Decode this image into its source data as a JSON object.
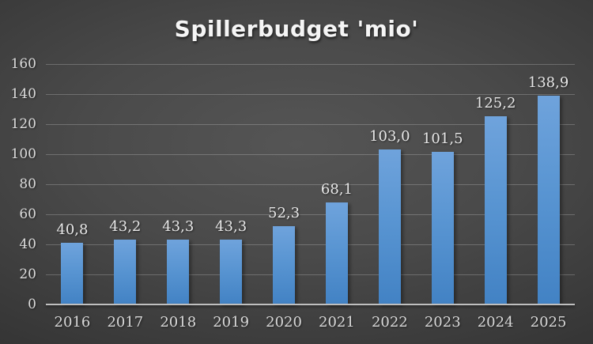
{
  "chart_data": {
    "type": "bar",
    "title": "Spillerbudget 'mio'",
    "categories": [
      "2016",
      "2017",
      "2018",
      "2019",
      "2020",
      "2021",
      "2022",
      "2023",
      "2024",
      "2025"
    ],
    "values": [
      40.8,
      43.2,
      43.3,
      43.3,
      52.3,
      68.1,
      103.0,
      101.5,
      125.2,
      138.9
    ],
    "value_labels": [
      "40,8",
      "43,2",
      "43,3",
      "43,3",
      "52,3",
      "68,1",
      "103,0",
      "101,5",
      "125,2",
      "138,9"
    ],
    "xlabel": "",
    "ylabel": "",
    "ylim": [
      0,
      160
    ],
    "yticks": [
      0,
      20,
      40,
      60,
      80,
      100,
      120,
      140,
      160
    ],
    "grid": true,
    "legend_position": "none",
    "decimal_separator": ",",
    "colors": {
      "bar_gradient_top": "#6fa3dc",
      "bar_gradient_bottom": "#4282c4",
      "accent": "#5b9bd5",
      "title_text": "#f5f5f5",
      "axis_text": "#d9d9d9",
      "gridline": "#6e6e6e",
      "axis_line": "#bfbfbf",
      "background_center": "#4f4f4f",
      "background_edge": "#222222"
    }
  }
}
